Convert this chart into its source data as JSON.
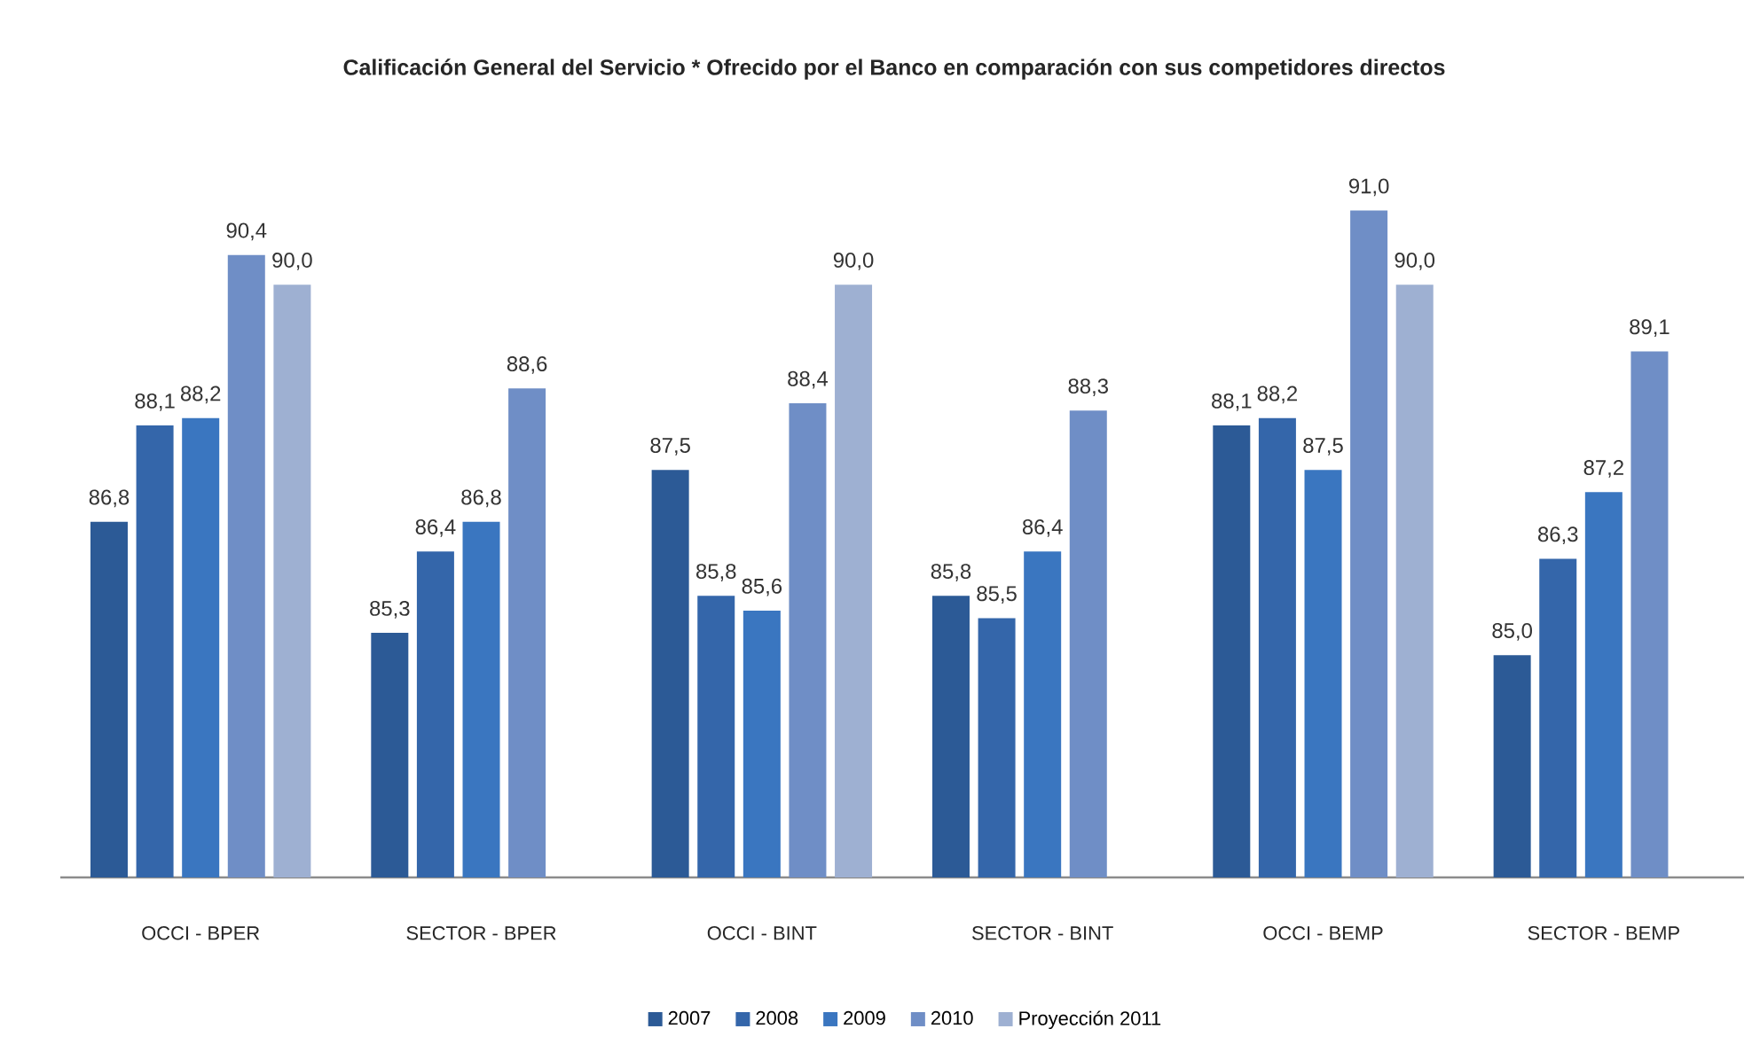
{
  "chart_data": {
    "type": "bar",
    "title": "Calificación General del Servicio * Ofrecido por el Banco en comparación con sus competidores directos",
    "categories": [
      "OCCI - BPER",
      "SECTOR - BPER",
      "OCCI - BINT",
      "SECTOR - BINT",
      "OCCI - BEMP",
      "SECTOR - BEMP"
    ],
    "series": [
      {
        "name": "2007",
        "color": "#2c5a96",
        "values": [
          86.8,
          85.3,
          87.5,
          85.8,
          88.1,
          85.0
        ],
        "value_labels": [
          "86,8",
          "85,3",
          "87,5",
          "85,8",
          "88,1",
          "85,0"
        ]
      },
      {
        "name": "2008",
        "color": "#3466aa",
        "values": [
          88.1,
          86.4,
          85.8,
          85.5,
          88.2,
          86.3
        ],
        "value_labels": [
          "88,1",
          "86,4",
          "85,8",
          "85,5",
          "88,2",
          "86,3"
        ]
      },
      {
        "name": "2009",
        "color": "#3a76c0",
        "values": [
          88.2,
          86.8,
          85.6,
          86.4,
          87.5,
          87.2
        ],
        "value_labels": [
          "88,2",
          "86,8",
          "85,6",
          "86,4",
          "87,5",
          "87,2"
        ]
      },
      {
        "name": "2010",
        "color": "#6f8ec6",
        "values": [
          90.4,
          88.6,
          88.4,
          88.3,
          91.0,
          89.1
        ],
        "value_labels": [
          "90,4",
          "88,6",
          "88,4",
          "88,3",
          "91,0",
          "89,1"
        ]
      },
      {
        "name": "Proyección 2011",
        "color": "#9eb0d2",
        "values": [
          90.0,
          null,
          90.0,
          null,
          90.0,
          null
        ],
        "value_labels": [
          "90,0",
          null,
          "90,0",
          null,
          "90,0",
          null
        ]
      }
    ],
    "ylim": [
      82,
      91
    ],
    "tick_labels": "x",
    "legend": "bottom"
  }
}
